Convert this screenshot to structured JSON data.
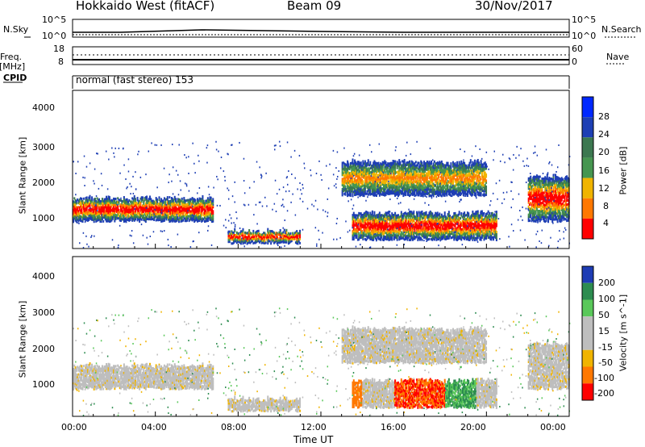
{
  "header": {
    "station": "Hokkaido West (fitACF)",
    "beam": "Beam 09",
    "date": "30/Nov/2017"
  },
  "aux": {
    "nsky_label": "N.Sky",
    "nsky_ticks": [
      "10^5",
      "10^0"
    ],
    "nsearch_label": "N.Search",
    "nsearch_ticks": [
      "10^5",
      "10^0"
    ],
    "freq_label_1": "Freq.",
    "freq_label_2": "[MHz]",
    "freq_ticks": [
      "18",
      "8"
    ],
    "nave_label": "Nave",
    "nave_ticks": [
      "60",
      "0"
    ],
    "cpid_label": "CPID",
    "cpid_text": "normal (fast stereo) 153"
  },
  "chart_data": [
    {
      "type": "heatmap",
      "name": "power",
      "ylabel": "Slant Range [km]",
      "yticks": [
        "4000",
        "3000",
        "2000",
        "1000"
      ],
      "ylim": [
        180,
        4500
      ],
      "colorbar_label": "Power [dB]",
      "colorbar_ticks": [
        "28",
        "24",
        "20",
        "16",
        "12",
        "8",
        "4"
      ],
      "colors": [
        "#0028ff",
        "#1e3fb4",
        "#3c7850",
        "#469650",
        "#f0b400",
        "#ff7800",
        "#ff0000"
      ],
      "features": [
        {
          "t_start": 0.0,
          "t_end": 6.8,
          "range_low": 900,
          "range_high": 1600,
          "level": "high"
        },
        {
          "t_start": 7.5,
          "t_end": 11.0,
          "range_low": 300,
          "range_high": 700,
          "level": "high"
        },
        {
          "t_start": 13.5,
          "t_end": 20.5,
          "range_low": 400,
          "range_high": 1200,
          "level": "high"
        },
        {
          "t_start": 13.0,
          "t_end": 20.0,
          "range_low": 1600,
          "range_high": 2600,
          "level": "medium"
        },
        {
          "t_start": 22.0,
          "t_end": 24.0,
          "range_low": 900,
          "range_high": 2200,
          "level": "high"
        }
      ]
    },
    {
      "type": "heatmap",
      "name": "velocity",
      "ylabel": "Slant Range [km]",
      "yticks": [
        "4000",
        "3000",
        "2000",
        "1000"
      ],
      "ylim": [
        180,
        4500
      ],
      "colorbar_label": "Velocity [m s^-1]",
      "colorbar_ticks": [
        "200",
        "100",
        "50",
        "15",
        "-15",
        "-50",
        "-100",
        "-200"
      ],
      "colors": [
        "#1e3cb4",
        "#2d8c50",
        "#5ac85a",
        "#bebebe",
        "#bebebe",
        "#f0b400",
        "#ff7800",
        "#ff0000"
      ],
      "xlabel": "Time UT",
      "xticks": [
        "00:00",
        "04:00",
        "08:00",
        "12:00",
        "16:00",
        "20:00",
        "00:00"
      ],
      "xlim": [
        0,
        24
      ]
    }
  ]
}
